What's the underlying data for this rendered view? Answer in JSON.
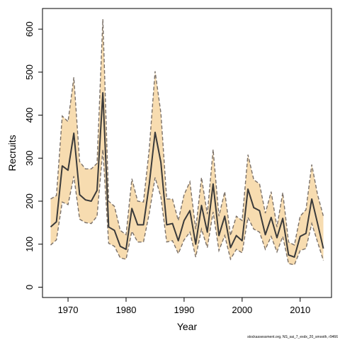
{
  "chart_data": {
    "type": "line",
    "title": "",
    "xlabel": "Year",
    "ylabel": "Recruits",
    "xlim": [
      1965.6,
      2015.4
    ],
    "ylim": [
      -24,
      648
    ],
    "x_ticks": [
      1970,
      1980,
      1990,
      2000,
      2010
    ],
    "y_ticks": [
      0,
      100,
      200,
      300,
      400,
      500,
      600
    ],
    "grid": false,
    "legend": "none",
    "colors": {
      "band": "#f7dcb0",
      "bound_line": "#7a7068",
      "median_line": "#3a3a3a",
      "frame": "#000000"
    },
    "x": [
      1967,
      1968,
      1969,
      1970,
      1971,
      1972,
      1973,
      1974,
      1975,
      1976,
      1977,
      1978,
      1979,
      1980,
      1981,
      1982,
      1983,
      1984,
      1985,
      1986,
      1987,
      1988,
      1989,
      1990,
      1991,
      1992,
      1993,
      1994,
      1995,
      1996,
      1997,
      1998,
      1999,
      2000,
      2001,
      2002,
      2003,
      2004,
      2005,
      2006,
      2007,
      2008,
      2009,
      2010,
      2011,
      2012,
      2013,
      2014
    ],
    "series": [
      {
        "name": "upper",
        "values": [
          205,
          213,
          398,
          385,
          488,
          292,
          275,
          275,
          288,
          623,
          200,
          188,
          132,
          122,
          252,
          200,
          198,
          322,
          502,
          405,
          205,
          205,
          155,
          215,
          245,
          135,
          255,
          170,
          320,
          165,
          222,
          120,
          165,
          155,
          308,
          250,
          240,
          172,
          222,
          140,
          220,
          105,
          98,
          165,
          180,
          285,
          215,
          165
        ]
      },
      {
        "name": "median",
        "values": [
          140,
          152,
          282,
          272,
          358,
          215,
          203,
          200,
          225,
          452,
          140,
          132,
          95,
          88,
          183,
          145,
          145,
          240,
          360,
          290,
          145,
          148,
          108,
          155,
          178,
          100,
          190,
          128,
          240,
          120,
          165,
          92,
          120,
          108,
          228,
          185,
          178,
          122,
          162,
          115,
          160,
          75,
          70,
          118,
          125,
          205,
          148,
          90
        ]
      },
      {
        "name": "lower",
        "values": [
          98,
          110,
          198,
          192,
          258,
          158,
          150,
          148,
          165,
          320,
          102,
          95,
          68,
          65,
          130,
          105,
          105,
          172,
          255,
          210,
          105,
          108,
          78,
          110,
          128,
          70,
          135,
          92,
          175,
          85,
          120,
          65,
          88,
          80,
          162,
          135,
          128,
          88,
          118,
          82,
          118,
          55,
          52,
          85,
          90,
          148,
          105,
          62
        ]
      }
    ]
  },
  "footnote": "stockassessment.org, NS_sai_7_exdx_20_smooth, r9466"
}
